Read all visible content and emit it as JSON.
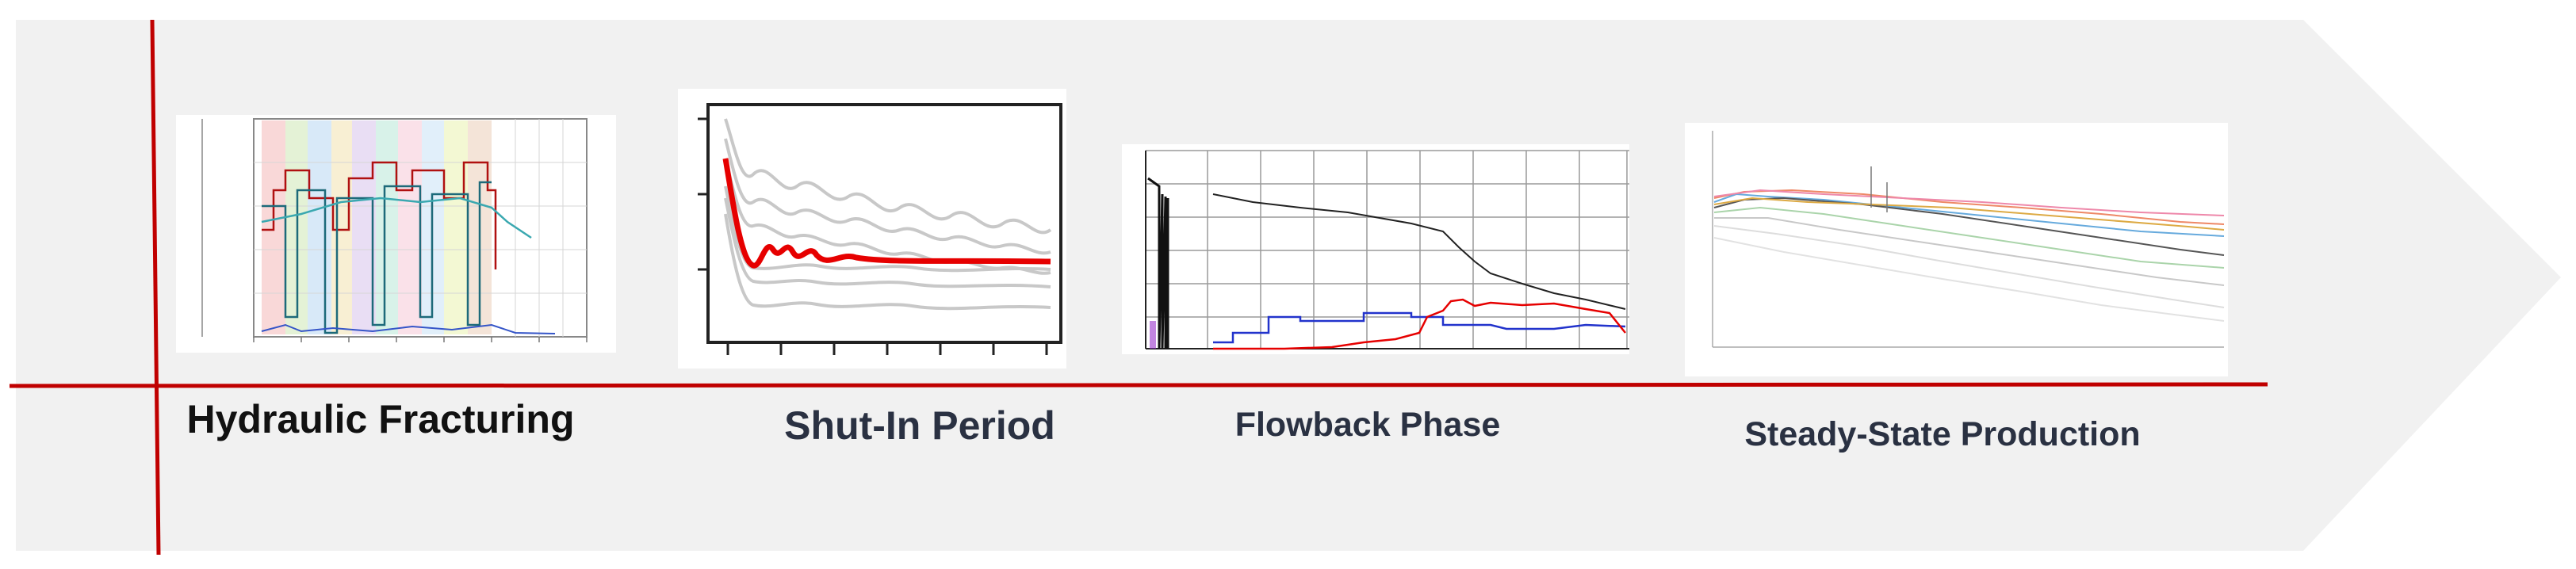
{
  "stages": [
    {
      "label": "Hydraulic Fracturing"
    },
    {
      "label": "Shut-In Period"
    },
    {
      "label": "Flowback Phase"
    },
    {
      "label": "Steady-State Production"
    }
  ],
  "colors": {
    "arrow_fill": "#f1f1f1",
    "axis_line": "#c00000",
    "label_dark": "#111111",
    "label_navy": "#2a3142",
    "highlight_red": "#e60000",
    "series_blue": "#2233cc",
    "series_gray": "#b8b8b8"
  }
}
